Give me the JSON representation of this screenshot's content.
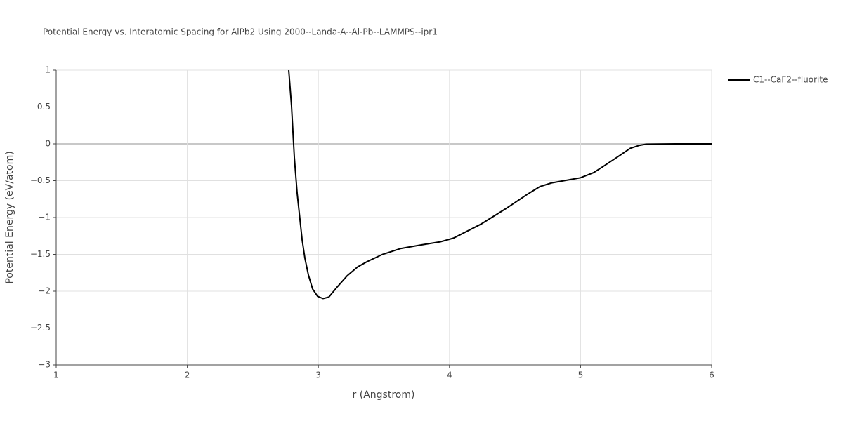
{
  "chart_data": {
    "type": "line",
    "title": "Potential Energy vs. Interatomic Spacing for AlPb2 Using 2000--Landa-A--Al-Pb--LAMMPS--ipr1",
    "x_label": "r (Angstrom)",
    "y_label": "Potential Energy (eV/atom)",
    "x": [
      2.774,
      2.795,
      2.817,
      2.838,
      2.876,
      2.897,
      2.924,
      2.956,
      2.994,
      3.036,
      3.08,
      3.14,
      3.22,
      3.3,
      3.37,
      3.49,
      3.63,
      3.79,
      3.93,
      4.03,
      4.13,
      4.24,
      4.43,
      4.59,
      4.69,
      4.78,
      5.0,
      5.1,
      5.17,
      5.28,
      5.38,
      5.45,
      5.5,
      5.72,
      6.0
    ],
    "series": [
      {
        "name": "C1--CaF2--fluorite",
        "color": "#000000",
        "values": [
          1.0,
          0.52,
          -0.19,
          -0.667,
          -1.3,
          -1.55,
          -1.78,
          -1.97,
          -2.07,
          -2.1,
          -2.08,
          -1.95,
          -1.79,
          -1.67,
          -1.6,
          -1.5,
          -1.42,
          -1.37,
          -1.33,
          -1.28,
          -1.19,
          -1.09,
          -0.88,
          -0.69,
          -0.58,
          -0.53,
          -0.46,
          -0.39,
          -0.31,
          -0.18,
          -0.06,
          -0.02,
          -0.005,
          0,
          0
        ]
      }
    ],
    "xlim": [
      1,
      6
    ],
    "xticks": [
      1,
      2,
      3,
      4,
      5,
      6
    ],
    "ylim": [
      -3,
      1
    ],
    "yticks": [
      {
        "value": -3,
        "label": "−3"
      },
      {
        "value": -2.5,
        "label": "−2.5"
      },
      {
        "value": -2,
        "label": "−2"
      },
      {
        "value": -1.5,
        "label": "−1.5"
      },
      {
        "value": -1,
        "label": "−1"
      },
      {
        "value": -0.5,
        "label": "−0.5"
      },
      0,
      0.5,
      1
    ],
    "grid": true,
    "legend": "right"
  }
}
